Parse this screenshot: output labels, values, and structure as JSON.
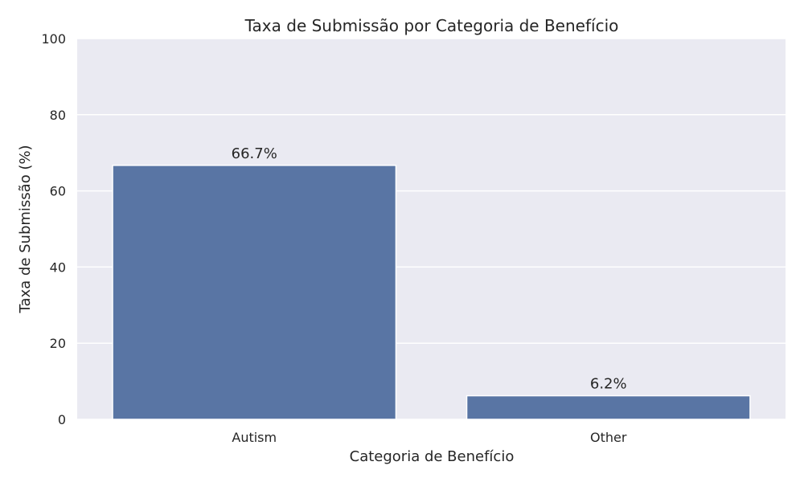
{
  "chart_data": {
    "type": "bar",
    "title": "Taxa de Submissão por Categoria de Benefício",
    "xlabel": "Categoria de Benefício",
    "ylabel": "Taxa de Submissão (%)",
    "categories": [
      "Autism",
      "Other"
    ],
    "values": [
      66.7,
      6.2
    ],
    "value_labels": [
      "66.7%",
      "6.2%"
    ],
    "ylim": [
      0,
      100
    ],
    "yticks": [
      0,
      20,
      40,
      60,
      80,
      100
    ],
    "grid": true,
    "bar_color": "#5975a4",
    "background_color": "#eaeaf2"
  }
}
